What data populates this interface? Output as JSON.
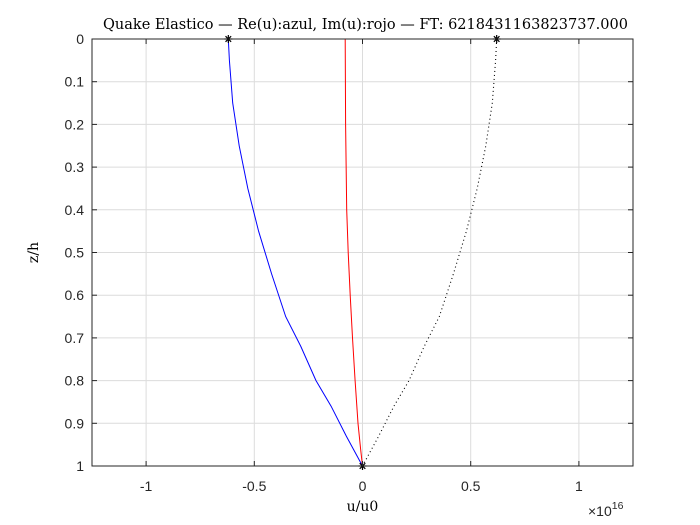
{
  "chart_data": {
    "type": "line",
    "title": "Quake Elastico — Re(u):azul, Im(u):rojo — FT: 6218431163823737.000",
    "xlabel": "u/u0",
    "ylabel": "z/h",
    "x_exponent_base": "×10",
    "x_exponent_power": "16",
    "xlim": [
      -1.25,
      1.25
    ],
    "ylim": [
      0,
      1
    ],
    "y_reversed": true,
    "grid": true,
    "x_ticks": [
      {
        "value": -1,
        "label": "-1"
      },
      {
        "value": -0.5,
        "label": "-0.5"
      },
      {
        "value": 0,
        "label": "0"
      },
      {
        "value": 0.5,
        "label": "0.5"
      },
      {
        "value": 1,
        "label": "1"
      }
    ],
    "y_ticks": [
      {
        "value": 0,
        "label": "0"
      },
      {
        "value": 0.1,
        "label": "0.1"
      },
      {
        "value": 0.2,
        "label": "0.2"
      },
      {
        "value": 0.3,
        "label": "0.3"
      },
      {
        "value": 0.4,
        "label": "0.4"
      },
      {
        "value": 0.5,
        "label": "0.5"
      },
      {
        "value": 0.6,
        "label": "0.6"
      },
      {
        "value": 0.7,
        "label": "0.7"
      },
      {
        "value": 0.8,
        "label": "0.8"
      },
      {
        "value": 0.9,
        "label": "0.9"
      },
      {
        "value": 1,
        "label": "1"
      }
    ],
    "series": [
      {
        "role": "real",
        "color": "#0000ff",
        "style": "solid",
        "x": [
          -0.62,
          -0.615,
          -0.6,
          -0.57,
          -0.53,
          -0.48,
          -0.42,
          -0.355,
          -0.285,
          -0.215,
          -0.145,
          -0.075,
          0
        ],
        "y": [
          0,
          0.05,
          0.15,
          0.25,
          0.35,
          0.45,
          0.55,
          0.65,
          0.72,
          0.8,
          0.86,
          0.93,
          1
        ]
      },
      {
        "role": "imaginary",
        "color": "#ff0000",
        "style": "solid",
        "x": [
          -0.08,
          -0.078,
          -0.073,
          -0.066,
          -0.057,
          -0.046,
          -0.034,
          -0.021,
          -0.009,
          0
        ],
        "y": [
          0,
          0.2,
          0.4,
          0.5,
          0.6,
          0.7,
          0.8,
          0.9,
          0.96,
          1
        ]
      },
      {
        "role": "envelope",
        "color": "#000000",
        "style": "dotted",
        "x": [
          0.62,
          0.615,
          0.6,
          0.57,
          0.53,
          0.48,
          0.42,
          0.355,
          0.285,
          0.215,
          0.145,
          0.075,
          0
        ],
        "y": [
          0,
          0.05,
          0.15,
          0.25,
          0.35,
          0.45,
          0.55,
          0.65,
          0.72,
          0.8,
          0.86,
          0.93,
          1
        ]
      }
    ],
    "markers": [
      {
        "x": -0.62,
        "y": 0,
        "symbol": "*",
        "color": "#000000"
      },
      {
        "x": 0.62,
        "y": 0,
        "symbol": "*",
        "color": "#000000"
      },
      {
        "x": 0,
        "y": 1,
        "symbol": "*",
        "color": "#000000"
      }
    ]
  }
}
